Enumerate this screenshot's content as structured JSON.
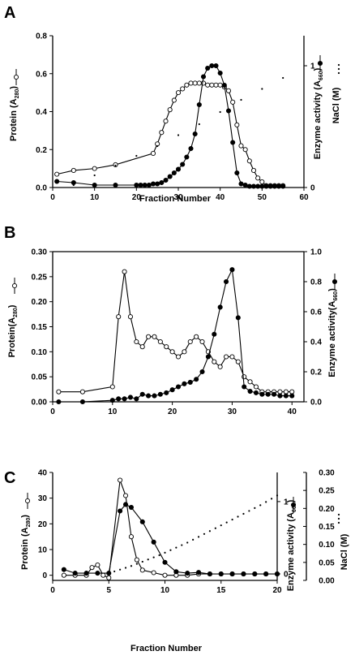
{
  "figure": {
    "panels": [
      {
        "letter": "A"
      },
      {
        "letter": "B"
      },
      {
        "letter": "C"
      }
    ]
  },
  "chart_data": [
    {
      "type": "line",
      "panel": "A",
      "xlabel": "Fraction Number",
      "ylabel": "Protein (A280)",
      "y2label": "Enzyme activity (A660)",
      "y3label": "NaCl (M)",
      "xlim": [
        0,
        60
      ],
      "ylim": [
        0,
        0.8
      ],
      "y2lim": [
        0,
        1
      ],
      "y3lim": [
        0,
        1
      ],
      "xticks": [
        "0",
        "10",
        "20",
        "30",
        "40",
        "50",
        "60"
      ],
      "yticks": [
        "0.0",
        "0.2",
        "0.4",
        "0.6",
        "0.8"
      ],
      "y2ticks": [
        "0",
        "1"
      ],
      "grid": false,
      "series": [
        {
          "axis": "left",
          "marker": "open-circle",
          "line": "solid",
          "x": [
            1,
            5,
            10,
            15,
            24,
            25,
            26,
            27,
            28,
            29,
            30,
            31,
            32,
            33,
            34,
            35,
            36,
            37,
            38,
            39,
            40,
            41,
            42,
            43,
            44,
            45,
            46,
            47,
            48,
            49,
            50,
            51,
            52,
            53,
            54,
            55
          ],
          "y": [
            0.07,
            0.09,
            0.1,
            0.12,
            0.18,
            0.23,
            0.29,
            0.35,
            0.41,
            0.46,
            0.5,
            0.52,
            0.54,
            0.55,
            0.55,
            0.55,
            0.55,
            0.54,
            0.54,
            0.54,
            0.54,
            0.53,
            0.51,
            0.45,
            0.33,
            0.22,
            0.2,
            0.14,
            0.09,
            0.05,
            0.03,
            0.01,
            0.01,
            0.01,
            0.01,
            0.01
          ]
        },
        {
          "axis": "right",
          "marker": "filled-circle",
          "line": "solid",
          "x": [
            1,
            5,
            10,
            15,
            20,
            21,
            22,
            23,
            24,
            25,
            26,
            27,
            28,
            29,
            30,
            31,
            32,
            33,
            34,
            35,
            36,
            37,
            38,
            39,
            40,
            41,
            42,
            43,
            44,
            45,
            46,
            47,
            48,
            49,
            50,
            51,
            52,
            53,
            54,
            55
          ],
          "y": [
            0.05,
            0.04,
            0.02,
            0.02,
            0.02,
            0.02,
            0.02,
            0.02,
            0.03,
            0.03,
            0.04,
            0.06,
            0.09,
            0.12,
            0.15,
            0.19,
            0.25,
            0.32,
            0.44,
            0.68,
            0.91,
            0.98,
            1.0,
            1.0,
            0.94,
            0.84,
            0.63,
            0.37,
            0.12,
            0.03,
            0.02,
            0.01,
            0.01,
            0.01,
            0.01,
            0.01,
            0.01,
            0.01,
            0.01,
            0.01
          ]
        },
        {
          "axis": "right",
          "marker": "dot",
          "line": "none",
          "x": [
            5,
            10,
            15,
            20,
            25,
            30,
            35,
            40,
            45,
            50,
            55
          ],
          "y": [
            0.02,
            0.1,
            0.18,
            0.26,
            0.34,
            0.43,
            0.52,
            0.62,
            0.72,
            0.81,
            0.9
          ]
        }
      ]
    },
    {
      "type": "line",
      "panel": "B",
      "xlabel": "",
      "ylabel": "Protein(A280)",
      "y2label": "Enzyme activity(A660)",
      "xlim": [
        0,
        42
      ],
      "ylim": [
        0,
        0.3
      ],
      "y2lim": [
        0,
        1.0
      ],
      "xticks": [
        "0",
        "10",
        "20",
        "30",
        "40"
      ],
      "yticks": [
        "0.00",
        "0.05",
        "0.10",
        "0.15",
        "0.20",
        "0.25",
        "0.30"
      ],
      "y2ticks": [
        "0.0",
        "0.2",
        "0.4",
        "0.6",
        "0.8",
        "1.0"
      ],
      "grid": false,
      "series": [
        {
          "axis": "left",
          "marker": "open-circle",
          "line": "solid",
          "x": [
            1,
            5,
            10,
            11,
            12,
            13,
            14,
            15,
            16,
            17,
            18,
            19,
            20,
            21,
            22,
            23,
            24,
            25,
            26,
            27,
            28,
            29,
            30,
            31,
            32,
            33,
            34,
            35,
            36,
            37,
            38,
            39,
            40
          ],
          "y": [
            0.02,
            0.02,
            0.03,
            0.17,
            0.26,
            0.17,
            0.12,
            0.11,
            0.13,
            0.13,
            0.12,
            0.11,
            0.1,
            0.09,
            0.1,
            0.12,
            0.13,
            0.12,
            0.1,
            0.08,
            0.07,
            0.09,
            0.09,
            0.08,
            0.05,
            0.04,
            0.03,
            0.02,
            0.02,
            0.02,
            0.02,
            0.02,
            0.02
          ]
        },
        {
          "axis": "right",
          "marker": "filled-circle",
          "line": "solid",
          "x": [
            1,
            5,
            10,
            11,
            12,
            13,
            14,
            15,
            16,
            17,
            18,
            19,
            20,
            21,
            22,
            23,
            24,
            25,
            26,
            27,
            28,
            29,
            30,
            31,
            32,
            33,
            34,
            35,
            36,
            37,
            38,
            39,
            40
          ],
          "y": [
            0.0,
            0.0,
            0.01,
            0.02,
            0.02,
            0.03,
            0.02,
            0.05,
            0.04,
            0.04,
            0.05,
            0.06,
            0.08,
            0.1,
            0.12,
            0.13,
            0.15,
            0.2,
            0.3,
            0.45,
            0.63,
            0.8,
            0.88,
            0.56,
            0.1,
            0.07,
            0.06,
            0.05,
            0.05,
            0.05,
            0.04,
            0.04,
            0.04
          ]
        }
      ]
    },
    {
      "type": "line",
      "panel": "C",
      "xlabel": "Fraction Number",
      "ylabel": "Protein (A280)",
      "y2label": "Enzyme activity (A660)",
      "y3label": "NaCl (M)",
      "xlim": [
        0,
        20
      ],
      "ylim": [
        -2,
        40
      ],
      "y2lim": [
        0,
        1.1
      ],
      "y3lim": [
        0,
        0.3
      ],
      "xticks": [
        "0",
        "5",
        "10",
        "15",
        "20"
      ],
      "yticks": [
        "0",
        "10",
        "20",
        "30",
        "40"
      ],
      "y2ticks": [
        "0",
        "1"
      ],
      "y3ticks": [
        "0.00",
        "0.05",
        "0.10",
        "0.15",
        "0.20",
        "0.25",
        "0.30"
      ],
      "grid": false,
      "series": [
        {
          "axis": "left",
          "marker": "open-circle",
          "line": "solid",
          "x": [
            1,
            2,
            3,
            3.5,
            4,
            4.5,
            5,
            6,
            6.5,
            7,
            7.5,
            8,
            9,
            10,
            11,
            12,
            13,
            14,
            15,
            16,
            17,
            18,
            19,
            20
          ],
          "y": [
            0,
            0,
            0,
            3,
            4,
            0,
            -1,
            37,
            31,
            15,
            6,
            2,
            1,
            0,
            0,
            0,
            0.5,
            0.5,
            0.5,
            0.5,
            0.5,
            0.5,
            0.5,
            0.5
          ]
        },
        {
          "axis": "right",
          "marker": "filled-circle",
          "line": "solid",
          "x": [
            1,
            2,
            3,
            4,
            5,
            6,
            6.5,
            7,
            8,
            9,
            10,
            11,
            12,
            13,
            14,
            15,
            16,
            17,
            18,
            19,
            20
          ],
          "y": [
            0.06,
            0.01,
            0.01,
            0.01,
            0.01,
            0.87,
            0.96,
            0.92,
            0.72,
            0.44,
            0.16,
            0.03,
            0.01,
            0.02,
            0.0,
            0.0,
            0.0,
            0.0,
            0.0,
            0.0,
            0.0
          ]
        },
        {
          "axis": "y3",
          "marker": "dot",
          "line": "none",
          "x": [
            5,
            5.5,
            6,
            6.5,
            7,
            7.5,
            8,
            8.5,
            9,
            9.5,
            10,
            10.5,
            11,
            11.5,
            12,
            12.5,
            13,
            13.5,
            14,
            14.5,
            15,
            15.5,
            16,
            16.5,
            17,
            17.5,
            18,
            18.5,
            19,
            19.5,
            20
          ],
          "y": [
            0.02,
            0.025,
            0.03,
            0.035,
            0.04,
            0.046,
            0.052,
            0.058,
            0.064,
            0.07,
            0.077,
            0.084,
            0.091,
            0.098,
            0.105,
            0.113,
            0.121,
            0.129,
            0.137,
            0.145,
            0.153,
            0.161,
            0.169,
            0.177,
            0.185,
            0.193,
            0.201,
            0.209,
            0.218,
            0.227,
            0.236
          ]
        }
      ]
    }
  ]
}
